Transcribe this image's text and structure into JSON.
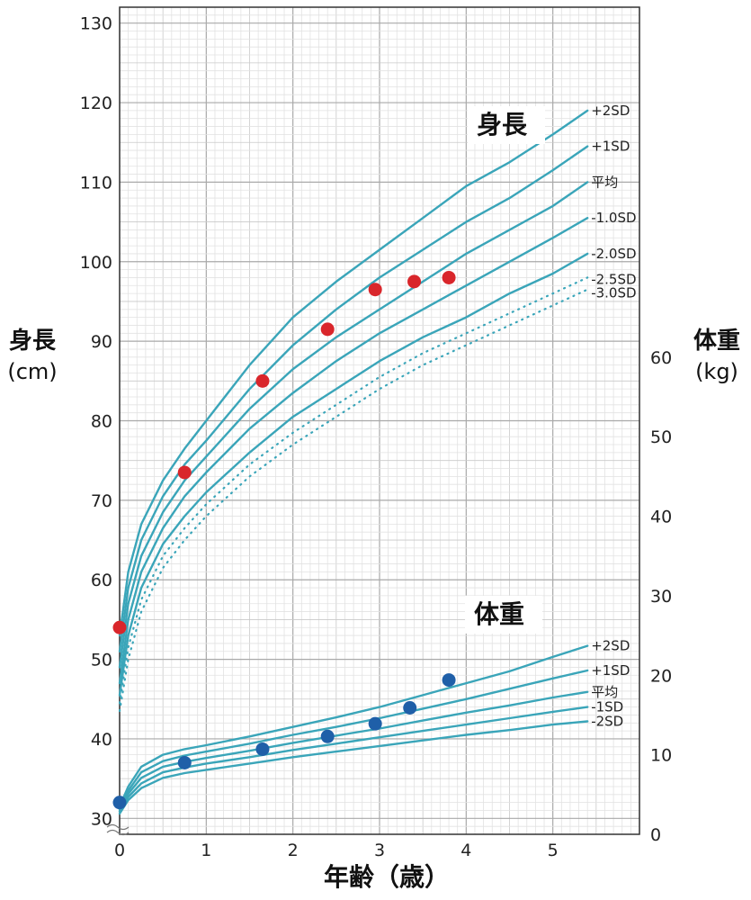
{
  "chart_data": {
    "type": "line",
    "xlabel": "年齢（歳）",
    "ylabel_left": "身長",
    "ylabel_left_unit": "(cm)",
    "ylabel_right": "体重",
    "ylabel_right_unit": "(kg)",
    "xlim": [
      0,
      6
    ],
    "ylim_left": [
      28,
      132
    ],
    "ylim_right": [
      0,
      104
    ],
    "x_ticks": [
      0,
      1,
      2,
      3,
      4,
      5
    ],
    "y_left_ticks": [
      30,
      40,
      50,
      60,
      70,
      80,
      90,
      100,
      110,
      120,
      130
    ],
    "y_right_ticks": [
      0,
      10,
      20,
      30,
      40,
      50,
      60
    ],
    "grid": true,
    "height": {
      "label": "身長",
      "axis": "left",
      "curves": [
        {
          "name": "+2SD",
          "style": "solid",
          "x": [
            0,
            0.1,
            0.25,
            0.5,
            0.75,
            1,
            1.5,
            2,
            2.5,
            3,
            3.5,
            4,
            4.5,
            5,
            5.4
          ],
          "y": [
            53,
            61,
            67,
            72.5,
            76.5,
            80,
            87,
            93,
            97.5,
            101.5,
            105.5,
            109.5,
            112.5,
            116,
            119
          ]
        },
        {
          "name": "+1SD",
          "style": "solid",
          "x": [
            0,
            0.1,
            0.25,
            0.5,
            0.75,
            1,
            1.5,
            2,
            2.5,
            3,
            3.5,
            4,
            4.5,
            5,
            5.4
          ],
          "y": [
            51,
            59,
            65,
            70.5,
            74.5,
            77.5,
            84,
            89.5,
            94,
            98,
            101.5,
            105,
            108,
            111.5,
            114.5
          ]
        },
        {
          "name": "平均",
          "style": "solid",
          "x": [
            0,
            0.1,
            0.25,
            0.5,
            0.75,
            1,
            1.5,
            2,
            2.5,
            3,
            3.5,
            4,
            4.5,
            5,
            5.4
          ],
          "y": [
            49,
            57,
            63,
            68.5,
            72.5,
            75.5,
            81.5,
            86.5,
            90.5,
            94,
            97.5,
            101,
            104,
            107,
            110
          ]
        },
        {
          "name": "-1.0SD",
          "style": "solid",
          "x": [
            0,
            0.1,
            0.25,
            0.5,
            0.75,
            1,
            1.5,
            2,
            2.5,
            3,
            3.5,
            4,
            4.5,
            5,
            5.4
          ],
          "y": [
            47,
            55,
            61,
            66.5,
            70.5,
            73.5,
            79,
            83.5,
            87.5,
            91,
            94,
            97,
            100,
            103,
            105.5
          ]
        },
        {
          "name": "-2.0SD",
          "style": "solid",
          "x": [
            0,
            0.1,
            0.25,
            0.5,
            0.75,
            1,
            1.5,
            2,
            2.5,
            3,
            3.5,
            4,
            4.5,
            5,
            5.4
          ],
          "y": [
            45.5,
            53,
            59,
            64.5,
            68,
            71,
            76,
            80.5,
            84,
            87.5,
            90.5,
            93,
            96,
            98.5,
            101
          ]
        },
        {
          "name": "-2.5SD",
          "style": "dotted",
          "x": [
            0,
            0.1,
            0.25,
            0.5,
            0.75,
            1,
            1.5,
            2,
            2.5,
            3,
            3.5,
            4,
            4.5,
            5,
            5.4
          ],
          "y": [
            44.5,
            51.5,
            57.5,
            63,
            66.5,
            69.5,
            74.5,
            78.5,
            82,
            85.5,
            88.5,
            91,
            93.5,
            96,
            98
          ]
        },
        {
          "name": "-3.0SD",
          "style": "dotted",
          "x": [
            0,
            0.1,
            0.25,
            0.5,
            0.75,
            1,
            1.5,
            2,
            2.5,
            3,
            3.5,
            4,
            4.5,
            5,
            5.4
          ],
          "y": [
            43.5,
            50,
            56,
            61.5,
            65,
            68,
            73,
            77,
            80.5,
            84,
            87,
            89.5,
            92,
            94.5,
            96.5
          ]
        }
      ],
      "points": {
        "x": [
          0,
          0.75,
          1.65,
          2.4,
          2.95,
          3.4,
          3.8
        ],
        "y": [
          54,
          73.5,
          85,
          91.5,
          96.5,
          97.5,
          98
        ],
        "color": "#d9262b"
      }
    },
    "weight": {
      "label": "体重",
      "axis": "right",
      "curves": [
        {
          "name": "+2SD",
          "style": "solid",
          "x": [
            0,
            0.1,
            0.25,
            0.5,
            0.75,
            1,
            1.5,
            2,
            2.5,
            3,
            3.5,
            4,
            4.5,
            5,
            5.4
          ],
          "y": [
            3.5,
            6,
            8.5,
            10,
            10.7,
            11.2,
            12.3,
            13.5,
            14.7,
            16,
            17.5,
            19,
            20.5,
            22.3,
            23.7
          ]
        },
        {
          "name": "+1SD",
          "style": "solid",
          "x": [
            0,
            0.1,
            0.25,
            0.5,
            0.75,
            1,
            1.5,
            2,
            2.5,
            3,
            3.5,
            4,
            4.5,
            5,
            5.4
          ],
          "y": [
            3.3,
            5.5,
            7.8,
            9.2,
            9.9,
            10.4,
            11.4,
            12.5,
            13.5,
            14.6,
            15.8,
            17,
            18.3,
            19.6,
            20.6
          ]
        },
        {
          "name": "平均",
          "style": "solid",
          "x": [
            0,
            0.1,
            0.25,
            0.5,
            0.75,
            1,
            1.5,
            2,
            2.5,
            3,
            3.5,
            4,
            4.5,
            5,
            5.4
          ],
          "y": [
            3.1,
            5.1,
            7.1,
            8.5,
            9.1,
            9.6,
            10.5,
            11.5,
            12.4,
            13.3,
            14.3,
            15.3,
            16.2,
            17.2,
            17.9
          ]
        },
        {
          "name": "-1SD",
          "style": "solid",
          "x": [
            0,
            0.1,
            0.25,
            0.5,
            0.75,
            1,
            1.5,
            2,
            2.5,
            3,
            3.5,
            4,
            4.5,
            5,
            5.4
          ],
          "y": [
            2.9,
            4.7,
            6.4,
            7.8,
            8.4,
            8.9,
            9.7,
            10.6,
            11.4,
            12.2,
            13,
            13.8,
            14.6,
            15.4,
            16
          ]
        },
        {
          "name": "-2SD",
          "style": "solid",
          "x": [
            0,
            0.1,
            0.25,
            0.5,
            0.75,
            1,
            1.5,
            2,
            2.5,
            3,
            3.5,
            4,
            4.5,
            5,
            5.4
          ],
          "y": [
            2.6,
            4.3,
            5.8,
            7.1,
            7.7,
            8.1,
            8.9,
            9.7,
            10.4,
            11.1,
            11.8,
            12.5,
            13.1,
            13.8,
            14.2
          ]
        }
      ],
      "points": {
        "x": [
          0,
          0.75,
          1.65,
          2.4,
          2.95,
          3.35,
          3.8
        ],
        "y": [
          4,
          9,
          10.7,
          12.3,
          13.9,
          15.9,
          19.4
        ],
        "color": "#1f5fa8"
      }
    },
    "curve_color": "#3aa5b9"
  }
}
